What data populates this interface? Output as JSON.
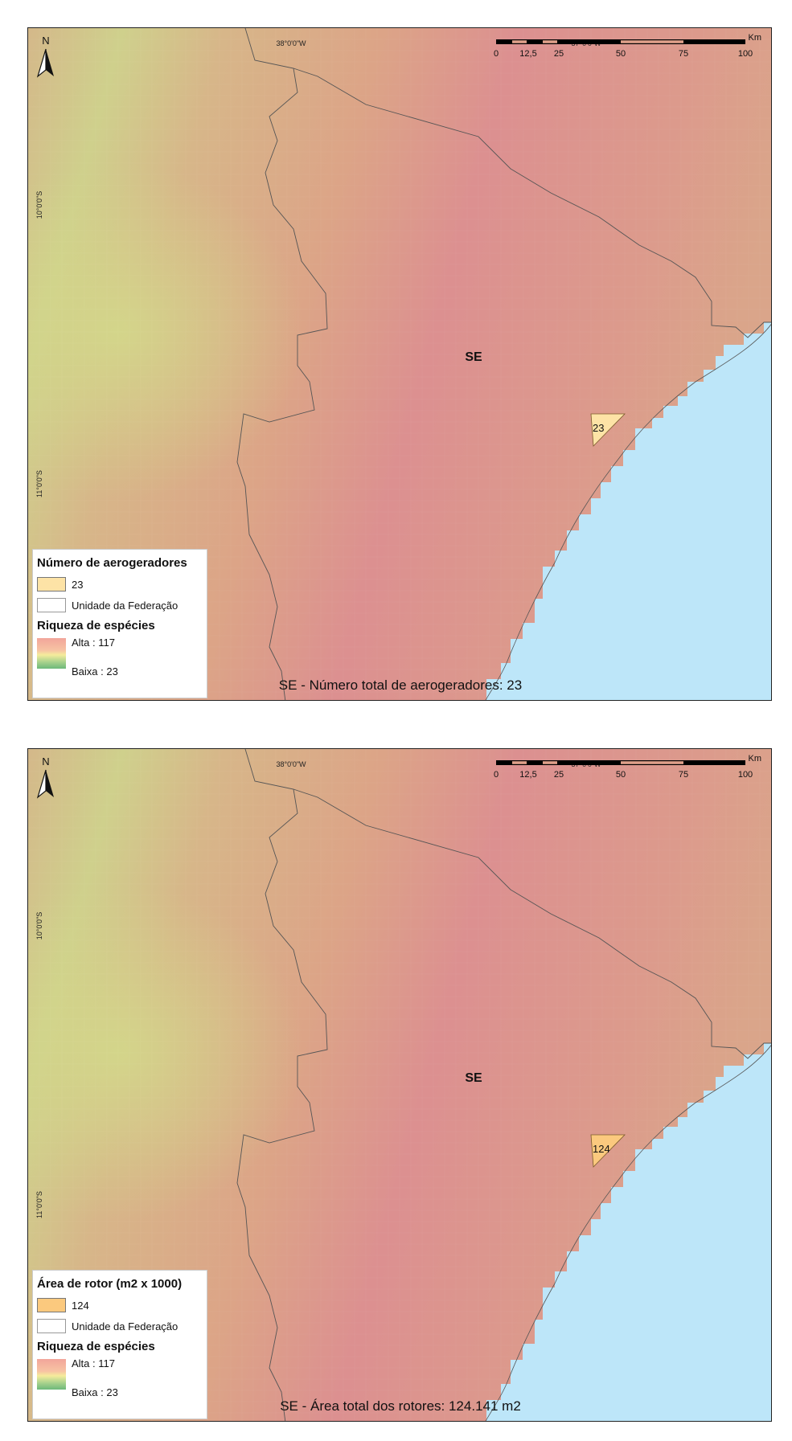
{
  "colors": {
    "land_pink": "#dc9090",
    "land_salmon": "#dca487",
    "land_yellow": "#cfd08c",
    "ocean": "#bde6f9",
    "turbine_fill_1": "#fde3a6",
    "turbine_fill_2": "#fbc97e",
    "boundary_line": "#555555"
  },
  "coordinates": {
    "lon_west": "38°0'0\"W",
    "lon_east": "37°0'0\"W",
    "lat_north": "10°0'0\"S",
    "lat_south": "11°0'0\"S"
  },
  "north_arrow": {
    "letter": "N",
    "icon": "north-arrow-icon"
  },
  "scalebar": {
    "unit": "Km",
    "ticks": [
      "0",
      "12,5",
      "25",
      "50",
      "75",
      "100"
    ]
  },
  "state_label": "SE",
  "panels": [
    {
      "turbine_value": "23",
      "caption": "SE - Número total de aerogeradores: 23",
      "legend": {
        "layer_title": "Número de aerogeradores",
        "layer_value": "23",
        "boundary_label": "Unidade da Federação",
        "richness_title": "Riqueza de espécies",
        "high_label": "Alta : 117",
        "low_label": "Baixa : 23"
      }
    },
    {
      "turbine_value": "124",
      "caption": "SE - Área total dos rotores: 124.141 m2",
      "legend": {
        "layer_title": "Área de rotor (m2 x 1000)",
        "layer_value": "124",
        "boundary_label": "Unidade da Federação",
        "richness_title": "Riqueza de espécies",
        "high_label": "Alta : 117",
        "low_label": "Baixa : 23"
      }
    }
  ]
}
